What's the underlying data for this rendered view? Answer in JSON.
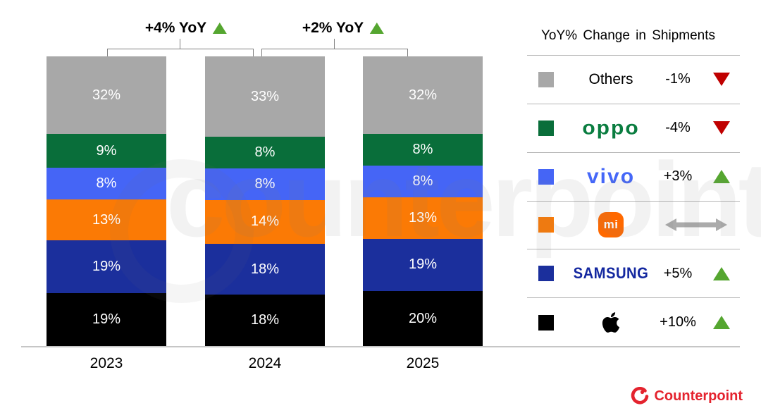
{
  "annotations": [
    {
      "label": "+4% YoY",
      "trend": "up"
    },
    {
      "label": "+2% YoY",
      "trend": "up"
    }
  ],
  "chart_data": {
    "type": "bar",
    "stacked": true,
    "categories": [
      "2023",
      "2024",
      "2025"
    ],
    "series": [
      {
        "name": "Apple",
        "color": "#000000",
        "values": [
          19,
          18,
          20
        ]
      },
      {
        "name": "Samsung",
        "color": "#1b2f9c",
        "values": [
          19,
          18,
          19
        ]
      },
      {
        "name": "Xiaomi",
        "color": "#fb7a05",
        "values": [
          13,
          14,
          13
        ]
      },
      {
        "name": "vivo",
        "color": "#4565f6",
        "values": [
          8,
          8,
          8
        ]
      },
      {
        "name": "OPPO",
        "color": "#096e3a",
        "values": [
          9,
          8,
          8
        ]
      },
      {
        "name": "Others",
        "color": "#a8a8a8",
        "values": [
          32,
          33,
          32
        ]
      }
    ],
    "value_suffix": "%",
    "ylim": [
      0,
      100
    ],
    "grid": false,
    "legend_position": "right",
    "bar_annotations": [
      "+4% YoY (2023→2024)",
      "+2% YoY (2024→2025)"
    ]
  },
  "legend": {
    "title": "YoY% Change in Shipments",
    "rows": [
      {
        "brand": "Others",
        "change": "-1%",
        "trend": "down",
        "color": "#a8a8a8"
      },
      {
        "brand": "OPPO",
        "change": "-4%",
        "trend": "down",
        "color": "#096e3a"
      },
      {
        "brand": "vivo",
        "change": "+3%",
        "trend": "up",
        "color": "#4565f6"
      },
      {
        "brand": "Xiaomi",
        "change": "",
        "trend": "flat",
        "color": "#fb7a05"
      },
      {
        "brand": "SAMSUNG",
        "change": "+5%",
        "trend": "up",
        "color": "#1b2f9c"
      },
      {
        "brand": "Apple",
        "change": "+10%",
        "trend": "up",
        "color": "#000000"
      }
    ],
    "logo_labels": {
      "oppo": "oppo",
      "vivo": "vivo",
      "mi": "mi",
      "samsung": "SAMSUNG"
    }
  },
  "footer": {
    "brand": "Counterpoint"
  },
  "watermark": {
    "text": "counterpoint"
  },
  "colors": {
    "trend_up": "#55a630",
    "trend_down": "#c00000",
    "flat_arrow": "#ababab",
    "axis_line": "#c6c6c6",
    "bracket": "#808080",
    "accent": "#e4232e"
  }
}
